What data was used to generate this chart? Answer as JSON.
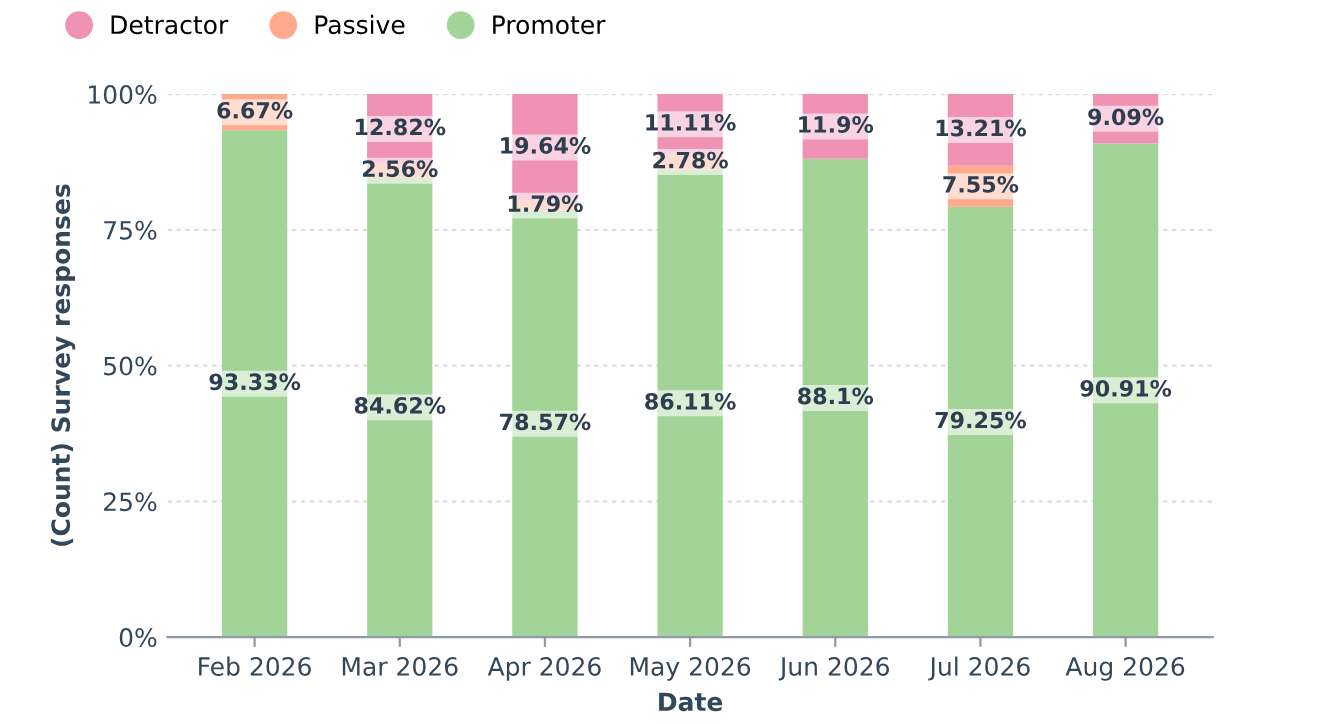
{
  "chart_data": {
    "type": "bar",
    "stacked": true,
    "xlabel": "Date",
    "ylabel": "(Count) Survey responses",
    "categories": [
      "Feb 2026",
      "Mar 2026",
      "Apr 2026",
      "May 2026",
      "Jun 2026",
      "Jul 2026",
      "Aug 2026"
    ],
    "series": [
      {
        "name": "Promoter",
        "color": "#a3d497",
        "values": [
          93.33,
          84.62,
          78.57,
          86.11,
          88.1,
          79.25,
          90.91
        ],
        "value_labels": [
          "93.33%",
          "84.62%",
          "78.57%",
          "86.11%",
          "88.1%",
          "79.25%",
          "90.91%"
        ]
      },
      {
        "name": "Passive",
        "color": "#ffaa8c",
        "values": [
          6.67,
          2.56,
          1.79,
          2.78,
          null,
          7.55,
          null
        ],
        "value_labels": [
          "6.67%",
          "2.56%",
          "1.79%",
          "2.78%",
          null,
          "7.55%",
          null
        ]
      },
      {
        "name": "Detractor",
        "color": "#ef92b3",
        "values": [
          null,
          12.82,
          19.64,
          11.11,
          11.9,
          13.21,
          9.09
        ],
        "value_labels": [
          null,
          "12.82%",
          "19.64%",
          "11.11%",
          "11.9%",
          "13.21%",
          "9.09%"
        ]
      }
    ],
    "ylim": [
      0,
      100
    ],
    "yticks": [
      {
        "value": 0,
        "label": "0%"
      },
      {
        "value": 25,
        "label": "25%"
      },
      {
        "value": 50,
        "label": "50%"
      },
      {
        "value": 75,
        "label": "75%"
      },
      {
        "value": 100,
        "label": "100%"
      }
    ],
    "grid": "y",
    "legend": "top left"
  }
}
